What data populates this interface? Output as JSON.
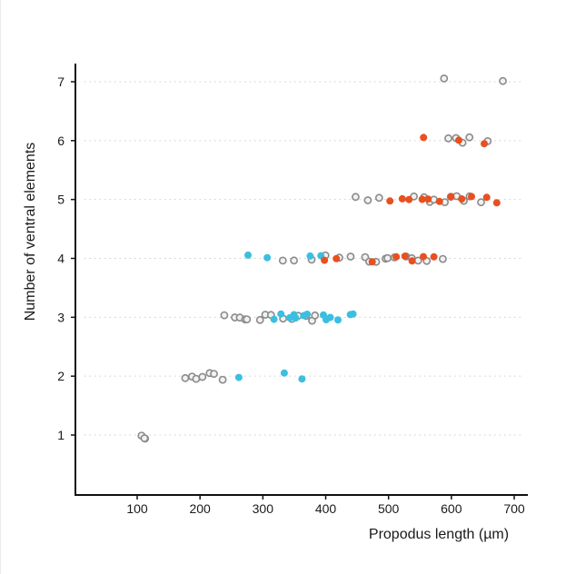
{
  "chart_data": {
    "type": "scatter",
    "title": "",
    "xlabel": "Propodus length (µm)",
    "ylabel": "Number of ventral elements",
    "xlim": [
      0,
      700
    ],
    "ylim": [
      0,
      7
    ],
    "x_ticks": [
      100,
      200,
      300,
      400,
      500,
      600,
      700
    ],
    "y_ticks": [
      1,
      2,
      3,
      4,
      5,
      6,
      7
    ],
    "grid": "horizontal dotted",
    "colors": {
      "gray": "#8a8a8a",
      "cyan": "#3bbfe0",
      "orange": "#e8501f"
    },
    "series": [
      {
        "name": "gray",
        "points": [
          [
            590,
            7
          ],
          [
            680,
            7
          ],
          [
            595,
            6
          ],
          [
            610,
            6
          ],
          [
            620,
            6
          ],
          [
            630,
            6
          ],
          [
            655,
            6
          ],
          [
            448,
            5
          ],
          [
            470,
            5
          ],
          [
            485,
            5
          ],
          [
            540,
            5
          ],
          [
            555,
            5
          ],
          [
            565,
            5
          ],
          [
            575,
            5
          ],
          [
            590,
            5
          ],
          [
            600,
            5
          ],
          [
            610,
            5
          ],
          [
            620,
            5
          ],
          [
            630,
            5
          ],
          [
            645,
            5
          ],
          [
            330,
            4
          ],
          [
            350,
            4
          ],
          [
            375,
            4
          ],
          [
            400,
            4
          ],
          [
            420,
            4
          ],
          [
            440,
            4
          ],
          [
            460,
            4
          ],
          [
            470,
            4
          ],
          [
            480,
            4
          ],
          [
            495,
            4
          ],
          [
            500,
            4
          ],
          [
            510,
            4
          ],
          [
            525,
            4
          ],
          [
            540,
            4
          ],
          [
            545,
            4
          ],
          [
            560,
            4
          ],
          [
            585,
            4
          ],
          [
            240,
            3
          ],
          [
            255,
            3
          ],
          [
            265,
            3
          ],
          [
            270,
            3
          ],
          [
            275,
            3
          ],
          [
            295,
            3
          ],
          [
            305,
            3
          ],
          [
            315,
            3
          ],
          [
            330,
            3
          ],
          [
            345,
            3
          ],
          [
            355,
            3
          ],
          [
            370,
            3
          ],
          [
            380,
            3
          ],
          [
            385,
            3
          ],
          [
            175,
            2
          ],
          [
            190,
            2
          ],
          [
            195,
            2
          ],
          [
            205,
            2
          ],
          [
            215,
            2
          ],
          [
            225,
            2
          ],
          [
            235,
            2
          ],
          [
            105,
            1
          ],
          [
            110,
            1
          ],
          [
            112,
            1
          ]
        ]
      },
      {
        "name": "cyan",
        "points": [
          [
            278,
            4
          ],
          [
            305,
            4
          ],
          [
            375,
            4
          ],
          [
            395,
            4
          ],
          [
            320,
            3
          ],
          [
            330,
            3
          ],
          [
            340,
            3
          ],
          [
            350,
            3
          ],
          [
            355,
            3
          ],
          [
            365,
            3
          ],
          [
            370,
            3
          ],
          [
            395,
            3
          ],
          [
            400,
            3
          ],
          [
            410,
            3
          ],
          [
            420,
            3
          ],
          [
            440,
            3
          ],
          [
            445,
            3
          ],
          [
            262,
            2
          ],
          [
            335,
            2
          ],
          [
            360,
            2
          ]
        ]
      },
      {
        "name": "orange",
        "points": [
          [
            553,
            6
          ],
          [
            610,
            6
          ],
          [
            655,
            6
          ],
          [
            505,
            5
          ],
          [
            520,
            5
          ],
          [
            535,
            5
          ],
          [
            555,
            5
          ],
          [
            565,
            5
          ],
          [
            580,
            5
          ],
          [
            600,
            5
          ],
          [
            615,
            5
          ],
          [
            630,
            5
          ],
          [
            655,
            5
          ],
          [
            670,
            5
          ],
          [
            398,
            4
          ],
          [
            415,
            4
          ],
          [
            475,
            4
          ],
          [
            510,
            4
          ],
          [
            525,
            4
          ],
          [
            535,
            4
          ],
          [
            555,
            4
          ],
          [
            570,
            4
          ]
        ]
      }
    ]
  }
}
